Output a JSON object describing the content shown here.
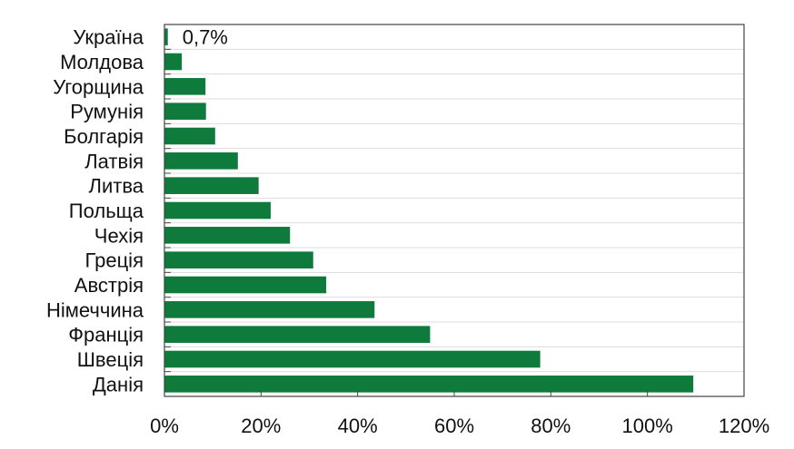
{
  "chart_data": {
    "type": "bar",
    "orientation": "horizontal",
    "categories": [
      "Україна",
      "Молдова",
      "Угорщина",
      "Румунія",
      "Болгарія",
      "Латвія",
      "Литва",
      "Польща",
      "Чехія",
      "Греція",
      "Австрія",
      "Німеччина",
      "Франція",
      "Швеція",
      "Данія"
    ],
    "values": [
      0.7,
      3.6,
      8.5,
      8.6,
      10.5,
      15.2,
      19.5,
      22.0,
      26.0,
      30.8,
      33.5,
      43.5,
      55.0,
      77.8,
      109.5
    ],
    "xlim": [
      0,
      120
    ],
    "xticks": [
      0,
      20,
      40,
      60,
      80,
      100,
      120
    ],
    "xtick_labels": [
      "0%",
      "20%",
      "40%",
      "60%",
      "80%",
      "100%",
      "120%"
    ],
    "data_labels": [
      {
        "category": "Україна",
        "text": "0,7%"
      }
    ],
    "bar_color": "#0e7a3c",
    "grid": "horizontal",
    "title": "",
    "xlabel": "",
    "ylabel": ""
  }
}
